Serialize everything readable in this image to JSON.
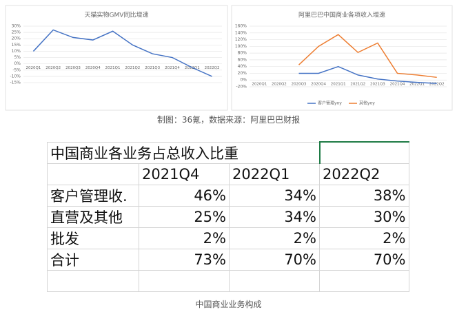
{
  "chart_data": [
    {
      "type": "line",
      "title": "天猫实物GMV同比增速",
      "categories": [
        "2020Q1",
        "2020Q2",
        "2020Q3",
        "2020Q4",
        "2021Q1",
        "2021Q2",
        "2021Q3",
        "2021Q4",
        "2022Q1",
        "2022Q2"
      ],
      "series": [
        {
          "name": null,
          "color": "#4472c4",
          "values": [
            10,
            27,
            21,
            19,
            26,
            15,
            8,
            5,
            -3,
            -10
          ]
        }
      ],
      "ylim": [
        -15,
        30
      ],
      "yticks": [
        {
          "value": -15,
          "label": "-15%"
        },
        {
          "value": -10,
          "label": "-10%"
        },
        {
          "value": -5,
          "label": "-5%"
        },
        {
          "value": 0,
          "label": "0%"
        },
        {
          "value": 5,
          "label": "5%"
        },
        {
          "value": 10,
          "label": "10%"
        },
        {
          "value": 15,
          "label": "15%"
        },
        {
          "value": 20,
          "label": "20%"
        },
        {
          "value": 25,
          "label": "25%"
        },
        {
          "value": 30,
          "label": "30%"
        }
      ],
      "grid": true
    },
    {
      "type": "line",
      "title": "阿里巴巴中国商业各项收入增速",
      "categories": [
        "2020Q1",
        "2020Q2",
        "2020Q3",
        "2020Q4",
        "2021Q1",
        "2021Q2",
        "2021Q3",
        "2021Q4",
        "2022Q1",
        "2022Q2"
      ],
      "series": [
        {
          "name": "客户管理yoy",
          "color": "#4472c4",
          "values": [
            null,
            null,
            20,
            20,
            40,
            15,
            3,
            -3,
            -7,
            -10
          ]
        },
        {
          "name": "其他yoy",
          "color": "#ed7d31",
          "values": [
            null,
            null,
            45,
            100,
            135,
            82,
            110,
            20,
            15,
            8
          ]
        }
      ],
      "ylim": [
        -20,
        160
      ],
      "yticks": [
        {
          "value": -20,
          "label": "-20%"
        },
        {
          "value": 0,
          "label": "0%"
        },
        {
          "value": 20,
          "label": "20%"
        },
        {
          "value": 40,
          "label": "40%"
        },
        {
          "value": 60,
          "label": "60%"
        },
        {
          "value": 80,
          "label": "80%"
        },
        {
          "value": 100,
          "label": "100%"
        },
        {
          "value": 120,
          "label": "120%"
        },
        {
          "value": 140,
          "label": "140%"
        },
        {
          "value": 160,
          "label": "160%"
        }
      ],
      "grid": true,
      "legend": "bottom"
    }
  ],
  "caption": "制图：36氪，数据来源：阿里巴巴财报",
  "table": {
    "title": "中国商业各业务占总收入比重",
    "header": [
      "2021Q4",
      "2022Q1",
      "2022Q2"
    ],
    "rows": [
      [
        "客户管理收.",
        "46%",
        "34%",
        "38%"
      ],
      [
        "直营及其他",
        "25%",
        "34%",
        "30%"
      ],
      [
        "批发",
        "2%",
        "2%",
        "2%"
      ],
      [
        "合计",
        "73%",
        "70%",
        "70%"
      ]
    ]
  },
  "table_caption": "中国商业业务构成"
}
